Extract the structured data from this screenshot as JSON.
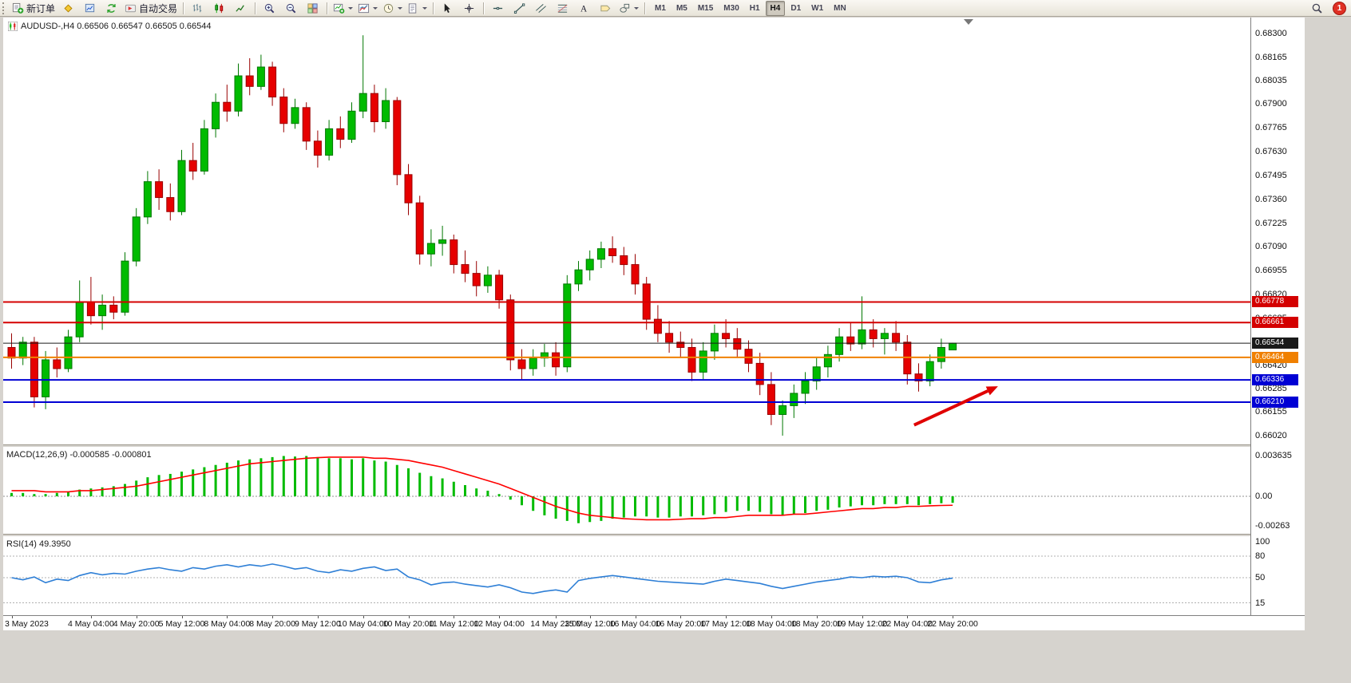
{
  "toolbar": {
    "new_order_label": "新订单",
    "autotrading_label": "自动交易",
    "timeframes": [
      "M1",
      "M5",
      "M15",
      "M30",
      "H1",
      "H4",
      "D1",
      "W1",
      "MN"
    ],
    "active_timeframe": "H4",
    "notification_badge": "1"
  },
  "chart": {
    "symbol": "AUDUSD-",
    "period": "H4",
    "title_full": "AUDUSD-,H4 0.66506 0.66547 0.66505 0.66544"
  },
  "chart_data": [
    {
      "type": "candlestick",
      "symbol": "AUDUSD-",
      "timeframe": "H4",
      "open": 0.66506,
      "high": 0.66547,
      "low": 0.66505,
      "close": 0.66544,
      "ylim": [
        0.6602,
        0.683
      ],
      "grid": false,
      "colors": {
        "bull": "#00BB00",
        "bull_border": "#007700",
        "bear": "#E60000",
        "bear_border": "#990000"
      },
      "price_ticks": [
        "0.68300",
        "0.68165",
        "0.68035",
        "0.67900",
        "0.67765",
        "0.67630",
        "0.67495",
        "0.67360",
        "0.67225",
        "0.67090",
        "0.66955",
        "0.66820",
        "0.66685",
        "0.66550",
        "0.66420",
        "0.66285",
        "0.66155",
        "0.66020"
      ],
      "levels": [
        {
          "price": 0.66778,
          "label": "0.66778",
          "color": "#D40000",
          "type": "resistance"
        },
        {
          "price": 0.66661,
          "label": "0.66661",
          "color": "#D40000",
          "type": "resistance"
        },
        {
          "price": 0.66464,
          "label": "0.66464",
          "color": "#F08000",
          "type": "pivot"
        },
        {
          "price": 0.66336,
          "label": "0.66336",
          "color": "#0000D4",
          "type": "support"
        },
        {
          "price": 0.6621,
          "label": "0.66210",
          "color": "#0000D4",
          "type": "support"
        }
      ],
      "bid_line": {
        "price": 0.66544,
        "label": "0.66544",
        "color": "#1A1A1A"
      },
      "annotations": [
        {
          "type": "arrow",
          "color": "#E00000",
          "from": {
            "index": 79.6,
            "price": 0.6608
          },
          "to": {
            "index": 87.0,
            "price": 0.663
          }
        }
      ],
      "x_labels": [
        {
          "t": "3 May 2023",
          "i": 0
        },
        {
          "t": "4 May 04:00",
          "i": 7
        },
        {
          "t": "4 May 20:00",
          "i": 11
        },
        {
          "t": "5 May 12:00",
          "i": 15
        },
        {
          "t": "8 May 04:00",
          "i": 19
        },
        {
          "t": "8 May 20:00",
          "i": 23
        },
        {
          "t": "9 May 12:00",
          "i": 27
        },
        {
          "t": "10 May 04:00",
          "i": 31
        },
        {
          "t": "10 May 20:00",
          "i": 35
        },
        {
          "t": "11 May 12:00",
          "i": 39
        },
        {
          "t": "12 May 04:00",
          "i": 43
        },
        {
          "t": "14 May 23:00",
          "i": 48
        },
        {
          "t": "15 May 12:00",
          "i": 51
        },
        {
          "t": "16 May 04:00",
          "i": 55
        },
        {
          "t": "16 May 20:00",
          "i": 59
        },
        {
          "t": "17 May 12:00",
          "i": 63
        },
        {
          "t": "18 May 04:00",
          "i": 67
        },
        {
          "t": "18 May 20:00",
          "i": 71
        },
        {
          "t": "19 May 12:00",
          "i": 75
        },
        {
          "t": "22 May 04:00",
          "i": 79
        },
        {
          "t": "22 May 20:00",
          "i": 83
        }
      ],
      "candles": [
        [
          0.6652,
          0.666,
          0.664,
          0.6646
        ],
        [
          0.6646,
          0.6658,
          0.6642,
          0.6655
        ],
        [
          0.6655,
          0.6658,
          0.6618,
          0.6624
        ],
        [
          0.6624,
          0.665,
          0.6617,
          0.6645
        ],
        [
          0.6645,
          0.6652,
          0.6635,
          0.664
        ],
        [
          0.664,
          0.6662,
          0.6638,
          0.6658
        ],
        [
          0.6658,
          0.669,
          0.6655,
          0.6678
        ],
        [
          0.6678,
          0.6692,
          0.6665,
          0.667
        ],
        [
          0.667,
          0.6682,
          0.6662,
          0.6676
        ],
        [
          0.6676,
          0.6681,
          0.6668,
          0.6672
        ],
        [
          0.6672,
          0.6706,
          0.667,
          0.6701
        ],
        [
          0.6701,
          0.6731,
          0.6698,
          0.6726
        ],
        [
          0.6726,
          0.6752,
          0.6722,
          0.6746
        ],
        [
          0.6746,
          0.6753,
          0.673,
          0.6737
        ],
        [
          0.6737,
          0.6745,
          0.6724,
          0.6729
        ],
        [
          0.6729,
          0.6764,
          0.6727,
          0.6758
        ],
        [
          0.6758,
          0.6768,
          0.6747,
          0.6752
        ],
        [
          0.6752,
          0.6781,
          0.675,
          0.6776
        ],
        [
          0.6776,
          0.6796,
          0.6771,
          0.6791
        ],
        [
          0.6791,
          0.6801,
          0.678,
          0.6786
        ],
        [
          0.6786,
          0.6813,
          0.6783,
          0.6806
        ],
        [
          0.6806,
          0.6816,
          0.6795,
          0.68
        ],
        [
          0.68,
          0.6818,
          0.6798,
          0.6811
        ],
        [
          0.6811,
          0.6814,
          0.6789,
          0.6794
        ],
        [
          0.6794,
          0.6799,
          0.6774,
          0.6779
        ],
        [
          0.6779,
          0.6793,
          0.6776,
          0.6788
        ],
        [
          0.6788,
          0.6791,
          0.6764,
          0.6769
        ],
        [
          0.6769,
          0.6775,
          0.6754,
          0.6761
        ],
        [
          0.6761,
          0.6781,
          0.6758,
          0.6776
        ],
        [
          0.6776,
          0.6783,
          0.6765,
          0.677
        ],
        [
          0.677,
          0.6791,
          0.6768,
          0.6786
        ],
        [
          0.6786,
          0.6829,
          0.6782,
          0.6796
        ],
        [
          0.6796,
          0.6801,
          0.6774,
          0.678
        ],
        [
          0.678,
          0.6799,
          0.6776,
          0.6792
        ],
        [
          0.6792,
          0.6794,
          0.6744,
          0.675
        ],
        [
          0.675,
          0.6756,
          0.6727,
          0.6734
        ],
        [
          0.6734,
          0.6738,
          0.6699,
          0.6705
        ],
        [
          0.6705,
          0.6719,
          0.6698,
          0.6711
        ],
        [
          0.6711,
          0.6721,
          0.6704,
          0.6713
        ],
        [
          0.6713,
          0.6716,
          0.6694,
          0.6699
        ],
        [
          0.6699,
          0.6707,
          0.6689,
          0.6694
        ],
        [
          0.6694,
          0.6701,
          0.6681,
          0.6687
        ],
        [
          0.6687,
          0.6698,
          0.6683,
          0.6693
        ],
        [
          0.6693,
          0.6696,
          0.6674,
          0.6679
        ],
        [
          0.6679,
          0.6682,
          0.6639,
          0.6645
        ],
        [
          0.6645,
          0.6651,
          0.6634,
          0.664
        ],
        [
          0.664,
          0.6651,
          0.6636,
          0.6646
        ],
        [
          0.6646,
          0.6654,
          0.6641,
          0.6649
        ],
        [
          0.6649,
          0.6655,
          0.6636,
          0.6641
        ],
        [
          0.6641,
          0.6693,
          0.6638,
          0.6688
        ],
        [
          0.6688,
          0.6701,
          0.6684,
          0.6696
        ],
        [
          0.6696,
          0.6707,
          0.669,
          0.6702
        ],
        [
          0.6702,
          0.6712,
          0.6697,
          0.6708
        ],
        [
          0.6708,
          0.6715,
          0.67,
          0.6704
        ],
        [
          0.6704,
          0.6709,
          0.6693,
          0.6699
        ],
        [
          0.6699,
          0.6705,
          0.6682,
          0.6688
        ],
        [
          0.6688,
          0.6692,
          0.6662,
          0.6668
        ],
        [
          0.6668,
          0.6676,
          0.6655,
          0.666
        ],
        [
          0.666,
          0.6667,
          0.6649,
          0.6655
        ],
        [
          0.6655,
          0.6661,
          0.6646,
          0.6652
        ],
        [
          0.6652,
          0.6657,
          0.6633,
          0.6638
        ],
        [
          0.6638,
          0.6655,
          0.6634,
          0.665
        ],
        [
          0.665,
          0.6665,
          0.6645,
          0.666
        ],
        [
          0.666,
          0.6668,
          0.6652,
          0.6657
        ],
        [
          0.6657,
          0.6663,
          0.6646,
          0.6651
        ],
        [
          0.6651,
          0.6656,
          0.6638,
          0.6643
        ],
        [
          0.6643,
          0.6649,
          0.6625,
          0.6631
        ],
        [
          0.6631,
          0.6638,
          0.6608,
          0.6614
        ],
        [
          0.6614,
          0.6622,
          0.6602,
          0.6619
        ],
        [
          0.6619,
          0.6631,
          0.6612,
          0.6626
        ],
        [
          0.6626,
          0.6638,
          0.662,
          0.6633
        ],
        [
          0.6633,
          0.6646,
          0.6628,
          0.6641
        ],
        [
          0.6641,
          0.6653,
          0.6635,
          0.6648
        ],
        [
          0.6648,
          0.6663,
          0.6644,
          0.6658
        ],
        [
          0.6658,
          0.6666,
          0.665,
          0.6654
        ],
        [
          0.6654,
          0.6681,
          0.6651,
          0.6662
        ],
        [
          0.6662,
          0.6668,
          0.6652,
          0.6657
        ],
        [
          0.6657,
          0.6663,
          0.6648,
          0.666
        ],
        [
          0.666,
          0.6667,
          0.665,
          0.6655
        ],
        [
          0.6655,
          0.6659,
          0.6631,
          0.6637
        ],
        [
          0.6637,
          0.6643,
          0.6627,
          0.6633
        ],
        [
          0.6633,
          0.6648,
          0.663,
          0.6644
        ],
        [
          0.6644,
          0.6657,
          0.664,
          0.6652
        ],
        [
          0.66506,
          0.66547,
          0.66505,
          0.66544
        ]
      ]
    },
    {
      "type": "bar",
      "name": "MACD",
      "label": "MACD(12,26,9) -0.000585 -0.000801",
      "macd_value": -0.000585,
      "signal_value": -0.000801,
      "y_ticks": [
        "0.003635",
        "0.00",
        "-0.00263"
      ],
      "ylim": [
        -0.00263,
        0.003635
      ],
      "histogram_color": "#00BB00",
      "signal_color": "#FF0000",
      "histogram": [
        0.0003,
        0.0003,
        0.0002,
        0.0002,
        0.0003,
        0.0004,
        0.0006,
        0.0007,
        0.0008,
        0.0009,
        0.0011,
        0.0014,
        0.0017,
        0.0019,
        0.002,
        0.0022,
        0.0024,
        0.0026,
        0.0028,
        0.003,
        0.0032,
        0.0033,
        0.0034,
        0.0035,
        0.0036,
        0.00355,
        0.0036,
        0.0035,
        0.0034,
        0.0034,
        0.0033,
        0.0034,
        0.0032,
        0.0031,
        0.0028,
        0.0025,
        0.0021,
        0.0018,
        0.0016,
        0.0013,
        0.001,
        0.0007,
        0.0005,
        0.0002,
        -0.0003,
        -0.0008,
        -0.0013,
        -0.0017,
        -0.002,
        -0.0022,
        -0.0024,
        -0.0023,
        -0.0022,
        -0.002,
        -0.0019,
        -0.0018,
        -0.0018,
        -0.0019,
        -0.0019,
        -0.0018,
        -0.0018,
        -0.0017,
        -0.0016,
        -0.0014,
        -0.0013,
        -0.0013,
        -0.0014,
        -0.0016,
        -0.0017,
        -0.0016,
        -0.0015,
        -0.0013,
        -0.0012,
        -0.001,
        -0.0009,
        -0.0008,
        -0.0008,
        -0.0007,
        -0.0007,
        -0.0007,
        -0.0008,
        -0.0007,
        -0.00062,
        -0.000585
      ],
      "signal": [
        0.0005,
        0.0005,
        0.0005,
        0.0004,
        0.0004,
        0.0004,
        0.0005,
        0.0005,
        0.0006,
        0.0007,
        0.0008,
        0.0009,
        0.0011,
        0.0013,
        0.0015,
        0.0017,
        0.0019,
        0.0021,
        0.0023,
        0.0025,
        0.0027,
        0.0029,
        0.003,
        0.0031,
        0.0032,
        0.0033,
        0.0034,
        0.00345,
        0.0035,
        0.0035,
        0.0035,
        0.0035,
        0.0034,
        0.0034,
        0.0033,
        0.0032,
        0.003,
        0.0028,
        0.0026,
        0.0023,
        0.002,
        0.0017,
        0.0014,
        0.0011,
        0.0007,
        0.0003,
        -0.0001,
        -0.0005,
        -0.0009,
        -0.0012,
        -0.0015,
        -0.0017,
        -0.0018,
        -0.0019,
        -0.002,
        -0.00205,
        -0.0021,
        -0.0021,
        -0.0021,
        -0.00205,
        -0.002,
        -0.002,
        -0.0019,
        -0.0019,
        -0.0018,
        -0.0017,
        -0.0017,
        -0.0017,
        -0.0017,
        -0.0016,
        -0.0016,
        -0.0015,
        -0.0014,
        -0.0013,
        -0.0012,
        -0.0011,
        -0.0011,
        -0.001,
        -0.001,
        -0.0009,
        -0.0009,
        -0.00085,
        -0.00082,
        -0.000801
      ]
    },
    {
      "type": "line",
      "name": "RSI",
      "label": "RSI(14) 49.3950",
      "value": 49.395,
      "ylim": [
        0,
        100
      ],
      "y_ticks": [
        "100",
        "80",
        "50",
        "15"
      ],
      "level_lines": [
        80,
        50,
        15
      ],
      "line_color": "#2E7FD6",
      "values": [
        50,
        47,
        51,
        43,
        48,
        46,
        53,
        57,
        54,
        56,
        55,
        59,
        62,
        64,
        61,
        59,
        64,
        62,
        66,
        68,
        65,
        68,
        66,
        69,
        66,
        62,
        64,
        59,
        57,
        61,
        59,
        63,
        65,
        60,
        62,
        51,
        47,
        40,
        43,
        44,
        41,
        39,
        37,
        40,
        36,
        30,
        28,
        31,
        33,
        30,
        46,
        49,
        51,
        53,
        51,
        49,
        47,
        45,
        44,
        43,
        42,
        41,
        45,
        48,
        46,
        44,
        42,
        38,
        35,
        38,
        41,
        44,
        46,
        48,
        51,
        50,
        52,
        51,
        52,
        50,
        44,
        43,
        47,
        49.395
      ]
    }
  ]
}
